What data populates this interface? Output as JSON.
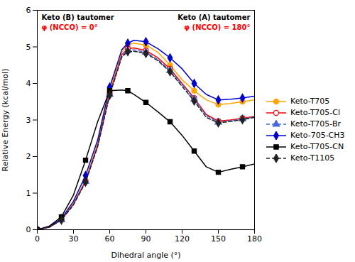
{
  "chart_data": {
    "type": "line",
    "xlabel": "Dihedral angle (°)",
    "ylabel": "Relative Energy (kcal/mol)",
    "x": [
      0,
      10,
      20,
      30,
      40,
      50,
      60,
      70,
      75,
      80,
      90,
      100,
      110,
      120,
      130,
      140,
      150,
      160,
      170,
      180
    ],
    "series": [
      {
        "name": "Keto-T705",
        "color": "#FFA500",
        "marker": "circle",
        "line_style": "solid",
        "values": [
          0.0,
          0.08,
          0.28,
          0.72,
          1.35,
          2.35,
          3.8,
          4.85,
          5.05,
          5.1,
          5.05,
          4.85,
          4.5,
          4.1,
          3.8,
          3.55,
          3.42,
          3.45,
          3.5,
          3.55
        ]
      },
      {
        "name": "Keto-T705-Cl",
        "color": "#FF0000",
        "marker": "open-circle",
        "line_style": "solid",
        "values": [
          0.0,
          0.07,
          0.27,
          0.7,
          1.33,
          2.3,
          3.72,
          4.78,
          4.95,
          4.97,
          4.9,
          4.7,
          4.4,
          4.0,
          3.6,
          3.15,
          2.97,
          3.0,
          3.05,
          3.1
        ]
      },
      {
        "name": "Keto-T705-Br",
        "color": "#4466DD",
        "marker": "triangle",
        "line_style": "dashed",
        "values": [
          0.0,
          0.07,
          0.27,
          0.69,
          1.32,
          2.28,
          3.7,
          4.75,
          4.9,
          4.92,
          4.85,
          4.65,
          4.35,
          3.97,
          3.57,
          3.12,
          2.94,
          2.98,
          3.03,
          3.08
        ]
      },
      {
        "name": "Keto-705-CH3",
        "color": "#0000CD",
        "marker": "diamond",
        "line_style": "solid",
        "values": [
          0.0,
          0.08,
          0.3,
          0.78,
          1.48,
          2.45,
          3.9,
          4.92,
          5.1,
          5.18,
          5.14,
          4.95,
          4.7,
          4.4,
          4.0,
          3.7,
          3.55,
          3.57,
          3.6,
          3.65
        ]
      },
      {
        "name": "Keto-T705-CN",
        "color": "#000000",
        "marker": "square",
        "line_style": "solid",
        "values": [
          0.0,
          0.1,
          0.35,
          0.95,
          1.9,
          2.95,
          3.8,
          3.82,
          3.8,
          3.7,
          3.48,
          3.22,
          2.95,
          2.58,
          2.15,
          1.72,
          1.57,
          1.65,
          1.72,
          1.8
        ]
      },
      {
        "name": "Keto-T1105",
        "color": "#222222",
        "marker": "diamond",
        "line_style": "dashed",
        "values": [
          0.0,
          0.07,
          0.26,
          0.68,
          1.3,
          2.27,
          3.68,
          4.72,
          4.87,
          4.88,
          4.82,
          4.62,
          4.32,
          3.92,
          3.52,
          3.07,
          2.92,
          2.96,
          3.01,
          3.07
        ]
      }
    ],
    "xlim": [
      0,
      180
    ],
    "ylim": [
      0,
      6
    ],
    "xticks": [
      0,
      30,
      60,
      90,
      120,
      150,
      180
    ],
    "yticks": [
      0,
      1,
      2,
      3,
      4,
      5,
      6
    ],
    "grid": false,
    "legend": "right",
    "annotations": [
      {
        "text": "Keto (B) tautomer"
      },
      {
        "text": "φ (NCCO) = 0°",
        "color": "#FF0000"
      },
      {
        "text": "Keto (A) tautomer"
      },
      {
        "text": "φ (NCCO) = 180°",
        "color": "#FF0000"
      }
    ]
  }
}
